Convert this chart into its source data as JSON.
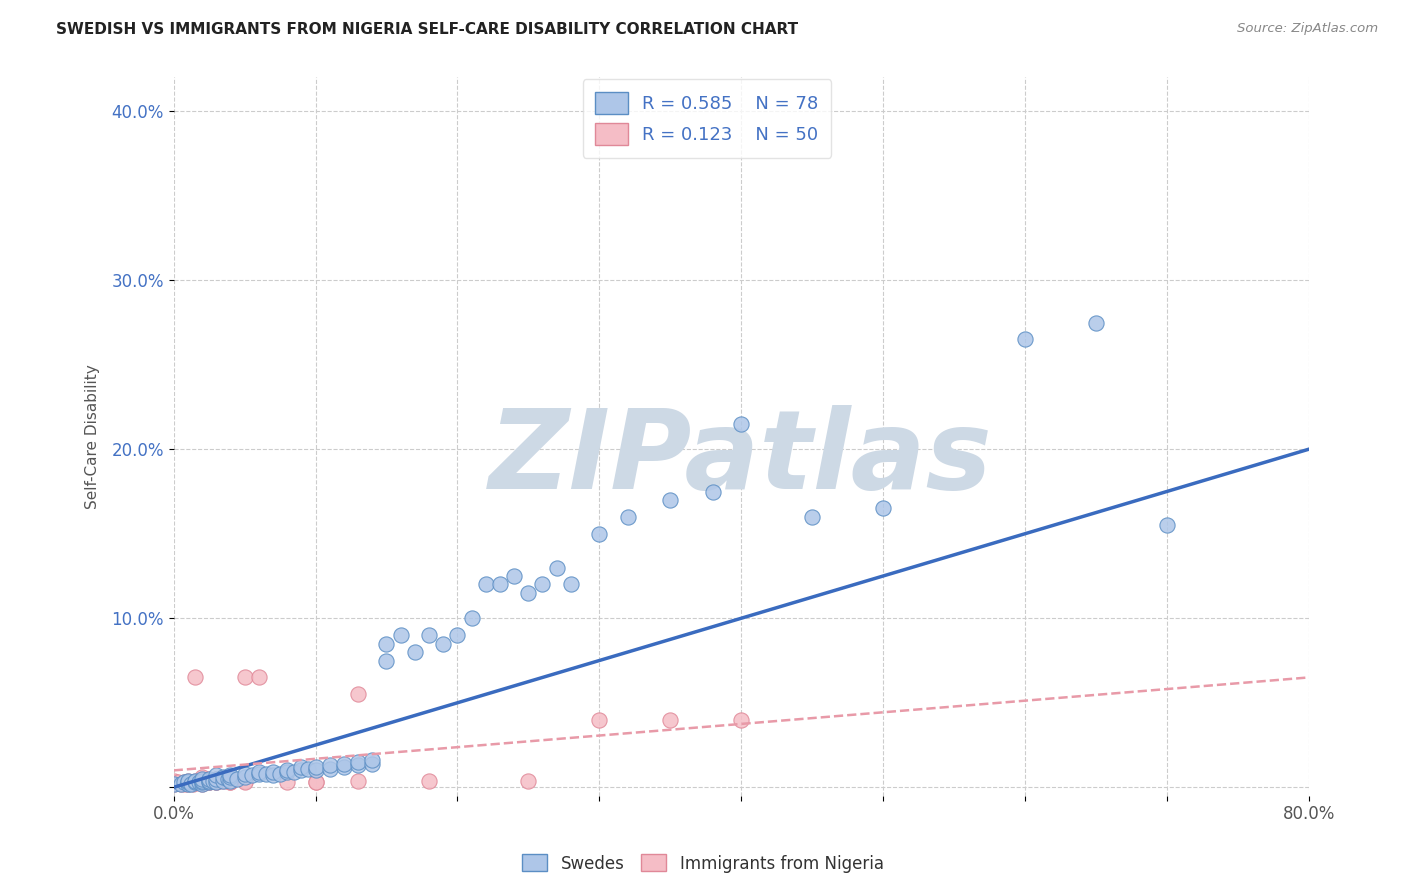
{
  "title": "SWEDISH VS IMMIGRANTS FROM NIGERIA SELF-CARE DISABILITY CORRELATION CHART",
  "source": "Source: ZipAtlas.com",
  "ylabel": "Self-Care Disability",
  "x_min": 0.0,
  "x_max": 0.8,
  "y_min": -0.005,
  "y_max": 0.42,
  "x_ticks": [
    0.0,
    0.1,
    0.2,
    0.3,
    0.4,
    0.5,
    0.6,
    0.7,
    0.8
  ],
  "y_ticks": [
    0.0,
    0.1,
    0.2,
    0.3,
    0.4
  ],
  "grid_color": "#cccccc",
  "background_color": "#ffffff",
  "watermark_text": "ZIPatlas",
  "watermark_color": "#cdd9e5",
  "swedes_color": "#aec6e8",
  "swedes_edge_color": "#5b8ec4",
  "nigeria_color": "#f5bdc6",
  "nigeria_edge_color": "#e08898",
  "swedes_line_color": "#3a6bbf",
  "nigeria_line_color": "#e89aa8",
  "R_swedes": 0.585,
  "N_swedes": 78,
  "R_nigeria": 0.123,
  "N_nigeria": 50,
  "swedes_line_x0": 0.0,
  "swedes_line_y0": 0.0,
  "swedes_line_x1": 0.8,
  "swedes_line_y1": 0.2,
  "nigeria_line_x0": 0.0,
  "nigeria_line_y0": 0.01,
  "nigeria_line_x1": 0.8,
  "nigeria_line_y1": 0.065,
  "swedes_x": [
    0.0,
    0.005,
    0.007,
    0.01,
    0.01,
    0.01,
    0.012,
    0.015,
    0.015,
    0.018,
    0.02,
    0.02,
    0.02,
    0.02,
    0.025,
    0.025,
    0.025,
    0.028,
    0.03,
    0.03,
    0.03,
    0.035,
    0.035,
    0.038,
    0.04,
    0.04,
    0.04,
    0.045,
    0.05,
    0.05,
    0.055,
    0.06,
    0.06,
    0.065,
    0.07,
    0.07,
    0.075,
    0.08,
    0.08,
    0.085,
    0.09,
    0.09,
    0.095,
    0.1,
    0.1,
    0.11,
    0.11,
    0.12,
    0.12,
    0.13,
    0.13,
    0.14,
    0.14,
    0.15,
    0.15,
    0.16,
    0.17,
    0.18,
    0.19,
    0.2,
    0.21,
    0.22,
    0.23,
    0.24,
    0.25,
    0.26,
    0.27,
    0.28,
    0.3,
    0.32,
    0.35,
    0.38,
    0.4,
    0.45,
    0.5,
    0.6,
    0.65,
    0.7
  ],
  "swedes_y": [
    0.002,
    0.002,
    0.003,
    0.002,
    0.003,
    0.004,
    0.002,
    0.003,
    0.004,
    0.003,
    0.002,
    0.003,
    0.004,
    0.005,
    0.003,
    0.004,
    0.005,
    0.004,
    0.003,
    0.005,
    0.007,
    0.004,
    0.006,
    0.005,
    0.004,
    0.006,
    0.007,
    0.005,
    0.006,
    0.008,
    0.007,
    0.008,
    0.009,
    0.008,
    0.007,
    0.009,
    0.008,
    0.009,
    0.01,
    0.009,
    0.01,
    0.012,
    0.011,
    0.01,
    0.012,
    0.011,
    0.013,
    0.012,
    0.014,
    0.013,
    0.015,
    0.014,
    0.016,
    0.075,
    0.085,
    0.09,
    0.08,
    0.09,
    0.085,
    0.09,
    0.1,
    0.12,
    0.12,
    0.125,
    0.115,
    0.12,
    0.13,
    0.12,
    0.15,
    0.16,
    0.17,
    0.175,
    0.215,
    0.16,
    0.165,
    0.265,
    0.275,
    0.155
  ],
  "nigeria_x": [
    0.0,
    0.0,
    0.003,
    0.005,
    0.007,
    0.008,
    0.01,
    0.01,
    0.01,
    0.012,
    0.014,
    0.015,
    0.015,
    0.018,
    0.018,
    0.02,
    0.02,
    0.02,
    0.02,
    0.02,
    0.025,
    0.025,
    0.025,
    0.03,
    0.03,
    0.03,
    0.035,
    0.04,
    0.04,
    0.05,
    0.05,
    0.06,
    0.08,
    0.1,
    0.13,
    0.18,
    0.25,
    0.3,
    0.35,
    0.4,
    0.13,
    0.1,
    0.05,
    0.02,
    0.01,
    0.015,
    0.02,
    0.025,
    0.03,
    0.04
  ],
  "nigeria_y": [
    0.002,
    0.004,
    0.003,
    0.002,
    0.003,
    0.002,
    0.002,
    0.003,
    0.004,
    0.003,
    0.002,
    0.003,
    0.004,
    0.003,
    0.004,
    0.002,
    0.003,
    0.004,
    0.005,
    0.006,
    0.003,
    0.004,
    0.005,
    0.003,
    0.004,
    0.005,
    0.004,
    0.003,
    0.005,
    0.004,
    0.065,
    0.065,
    0.003,
    0.003,
    0.004,
    0.004,
    0.004,
    0.04,
    0.04,
    0.04,
    0.055,
    0.003,
    0.003,
    0.003,
    0.003,
    0.065,
    0.003,
    0.003,
    0.003,
    0.003
  ]
}
